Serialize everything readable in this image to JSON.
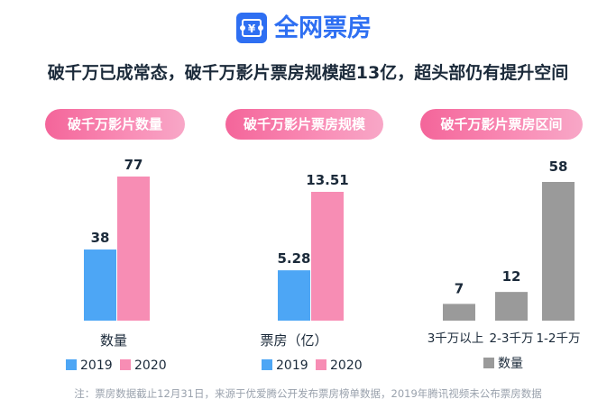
{
  "header": {
    "logo_icon": "ticket-yuan-icon",
    "logo_symbol": "¥",
    "title": "全网票房",
    "title_color": "#2e6ff2"
  },
  "subtitle": "破千万已成常态，破千万影片票房规模超13亿，超头部仍有提升空间",
  "panels": [
    {
      "pill": "破千万影片数量"
    },
    {
      "pill": "破千万影片票房规模"
    },
    {
      "pill": "破千万影片票房区间"
    }
  ],
  "colors": {
    "series_2019": "#4da6f5",
    "series_2020": "#f78db4",
    "gray": "#9a9a9a",
    "pill_start": "#f4659a"
  },
  "footnote": "注：票房数据截止12月31日，来源于优爱腾公开发布票房榜单数据，2019年腾讯视频未公布票房数据",
  "chart_data": [
    {
      "type": "bar",
      "title": "破千万影片数量",
      "categories": [
        "数量"
      ],
      "series": [
        {
          "name": "2019",
          "values": [
            38
          ],
          "labels": [
            "38"
          ]
        },
        {
          "name": "2020",
          "values": [
            77
          ],
          "labels": [
            "77"
          ]
        }
      ],
      "ylim": [
        0,
        77
      ]
    },
    {
      "type": "bar",
      "title": "破千万影片票房规模",
      "categories": [
        "票房（亿）"
      ],
      "series": [
        {
          "name": "2019",
          "values": [
            5.28
          ],
          "labels": [
            "5.28"
          ]
        },
        {
          "name": "2020",
          "values": [
            13.51
          ],
          "labels": [
            "13.51"
          ]
        }
      ],
      "ylim": [
        0,
        13.51
      ]
    },
    {
      "type": "bar",
      "title": "破千万影片票房区间",
      "categories": [
        "3千万以上",
        "2-3千万",
        "1-2千万"
      ],
      "series": [
        {
          "name": "数量",
          "values": [
            7,
            12,
            58
          ],
          "labels": [
            "7",
            "12",
            "58"
          ]
        }
      ],
      "ylim": [
        0,
        58
      ]
    }
  ]
}
